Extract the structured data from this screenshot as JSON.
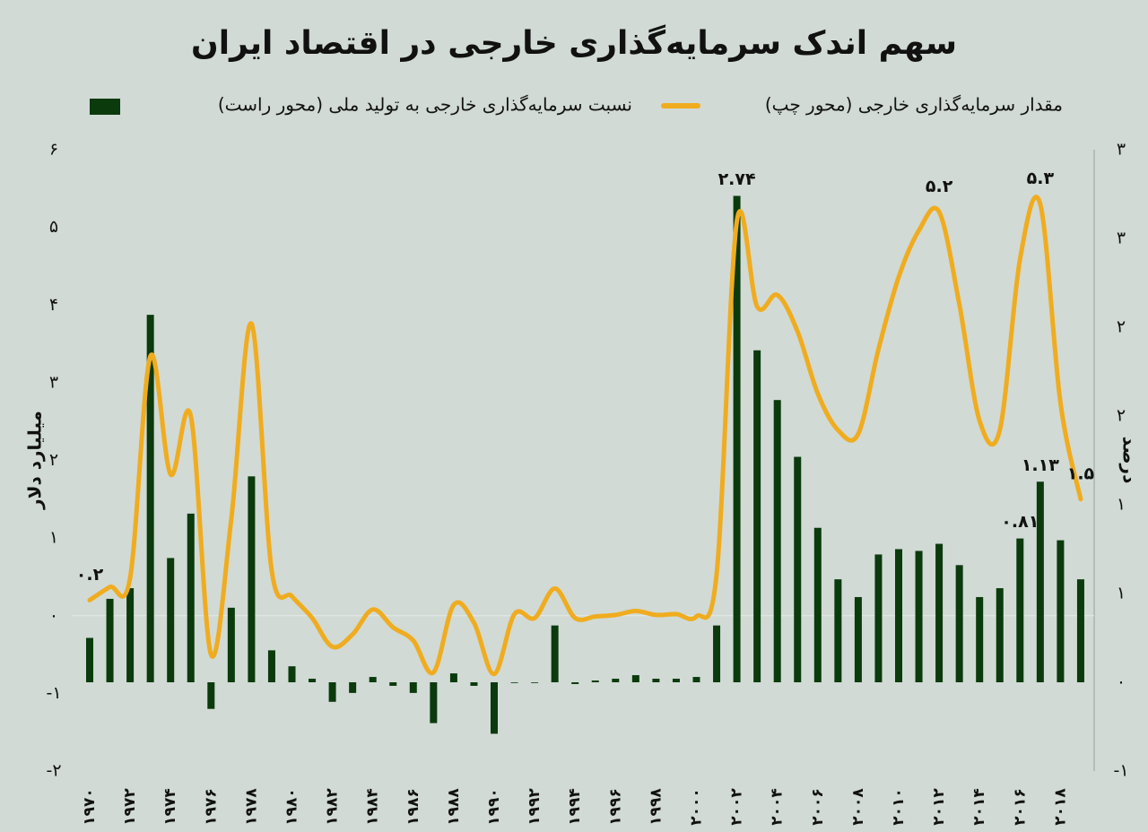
{
  "chart_data": {
    "type": "combo",
    "title": "سهم اندک سرمایه‌گذاری خارجی در اقتصاد ایران",
    "ylabel": "میلیارد دلار",
    "y2label": "درصد",
    "categories": [
      "۱۹۷۰",
      null,
      "۱۹۷۲",
      null,
      "۱۹۷۴",
      null,
      "۱۹۷۶",
      null,
      "۱۹۷۸",
      null,
      "۱۹۸۰",
      null,
      "۱۹۸۲",
      null,
      "۱۹۸۴",
      null,
      "۱۹۸۶",
      null,
      "۱۹۸۸",
      null,
      "۱۹۹۰",
      null,
      "۱۹۹۲",
      null,
      "۱۹۹۴",
      null,
      "۱۹۹۶",
      null,
      "۱۹۹۸",
      null,
      "۲۰۰۰",
      null,
      "۲۰۰۲",
      null,
      "۲۰۰۴",
      null,
      "۲۰۰۶",
      null,
      "۲۰۰۸",
      null,
      "۲۰۱۰",
      null,
      "۲۰۱۲",
      null,
      "۲۰۱۴",
      null,
      "۲۰۱۶",
      null,
      "۲۰۱۸",
      null
    ],
    "ylim": [
      -2,
      6
    ],
    "yticks": [
      {
        "value": -2,
        "label": "-۲"
      },
      {
        "value": -1,
        "label": "-۱"
      },
      {
        "value": 0,
        "label": "۰"
      },
      {
        "value": 1,
        "label": "۱"
      },
      {
        "value": 2,
        "label": "۲"
      },
      {
        "value": 3,
        "label": "۳"
      },
      {
        "value": 4,
        "label": "۴"
      },
      {
        "value": 5,
        "label": "۵"
      },
      {
        "value": 6,
        "label": "۶"
      }
    ],
    "y2lim": [
      -0.5,
      3
    ],
    "y2ticks": [
      {
        "value": -0.5,
        "label": "-۱"
      },
      {
        "value": 0,
        "label": "۰"
      },
      {
        "value": 0.5,
        "label": "۱"
      },
      {
        "value": 1,
        "label": "۱"
      },
      {
        "value": 1.5,
        "label": "۲"
      },
      {
        "value": 2,
        "label": "۲"
      },
      {
        "value": 2.5,
        "label": "۳"
      },
      {
        "value": 3,
        "label": "۳"
      }
    ],
    "series": [
      {
        "name": "مقدار سرمایه‌گذاری خارجی (محور چپ)",
        "type": "line",
        "color": "#f0ac1f",
        "values": [
          0.2,
          0.37,
          0.49,
          3.34,
          1.82,
          2.57,
          -0.5,
          1.24,
          3.76,
          0.58,
          0.25,
          -0.03,
          -0.4,
          -0.24,
          0.08,
          -0.15,
          -0.32,
          -0.73,
          0.14,
          -0.09,
          -0.75,
          0.02,
          -0.03,
          0.35,
          -0.03,
          -0.01,
          0.01,
          0.06,
          0.01,
          0.02,
          -0.01,
          0.54,
          5.08,
          3.98,
          4.13,
          3.66,
          2.86,
          2.39,
          2.34,
          3.43,
          4.36,
          4.96,
          5.2,
          4.01,
          2.51,
          2.39,
          4.59,
          5.3,
          2.74,
          1.5
        ],
        "value_labels": [
          "۰.۲",
          null,
          null,
          null,
          null,
          null,
          null,
          null,
          null,
          null,
          null,
          null,
          null,
          null,
          null,
          null,
          null,
          null,
          null,
          null,
          null,
          null,
          null,
          null,
          null,
          null,
          null,
          null,
          null,
          null,
          null,
          null,
          null,
          null,
          null,
          null,
          null,
          null,
          null,
          null,
          null,
          null,
          "۵.۲",
          null,
          null,
          null,
          null,
          "۵.۳",
          null,
          "۱.۵"
        ]
      },
      {
        "name": "نسبت سرمایه‌گذاری خارجی به تولید ملی (محور راست)",
        "type": "bar",
        "axis": "y2",
        "color": "#0b3a0c",
        "values": [
          0.25,
          0.47,
          0.53,
          2.07,
          0.7,
          0.95,
          -0.15,
          0.42,
          1.16,
          0.18,
          0.09,
          0.02,
          -0.11,
          -0.06,
          0.03,
          -0.02,
          -0.06,
          -0.23,
          0.05,
          -0.02,
          -0.29,
          0,
          0,
          0.32,
          -0.01,
          0.01,
          0.02,
          0.04,
          0.02,
          0.02,
          0.03,
          0.32,
          2.74,
          1.87,
          1.59,
          1.27,
          0.87,
          0.58,
          0.48,
          0.72,
          0.75,
          0.74,
          0.78,
          0.66,
          0.48,
          0.53,
          0.81,
          1.13,
          0.8,
          0.58
        ],
        "value_labels": [
          null,
          null,
          null,
          null,
          null,
          null,
          null,
          null,
          null,
          null,
          null,
          null,
          null,
          null,
          null,
          null,
          null,
          null,
          null,
          null,
          null,
          null,
          null,
          null,
          null,
          null,
          null,
          null,
          null,
          null,
          null,
          null,
          "۲.۷۴",
          null,
          null,
          null,
          null,
          null,
          null,
          null,
          null,
          null,
          null,
          null,
          null,
          null,
          "۰.۸۱",
          "۱.۱۳",
          null,
          null
        ]
      }
    ]
  }
}
